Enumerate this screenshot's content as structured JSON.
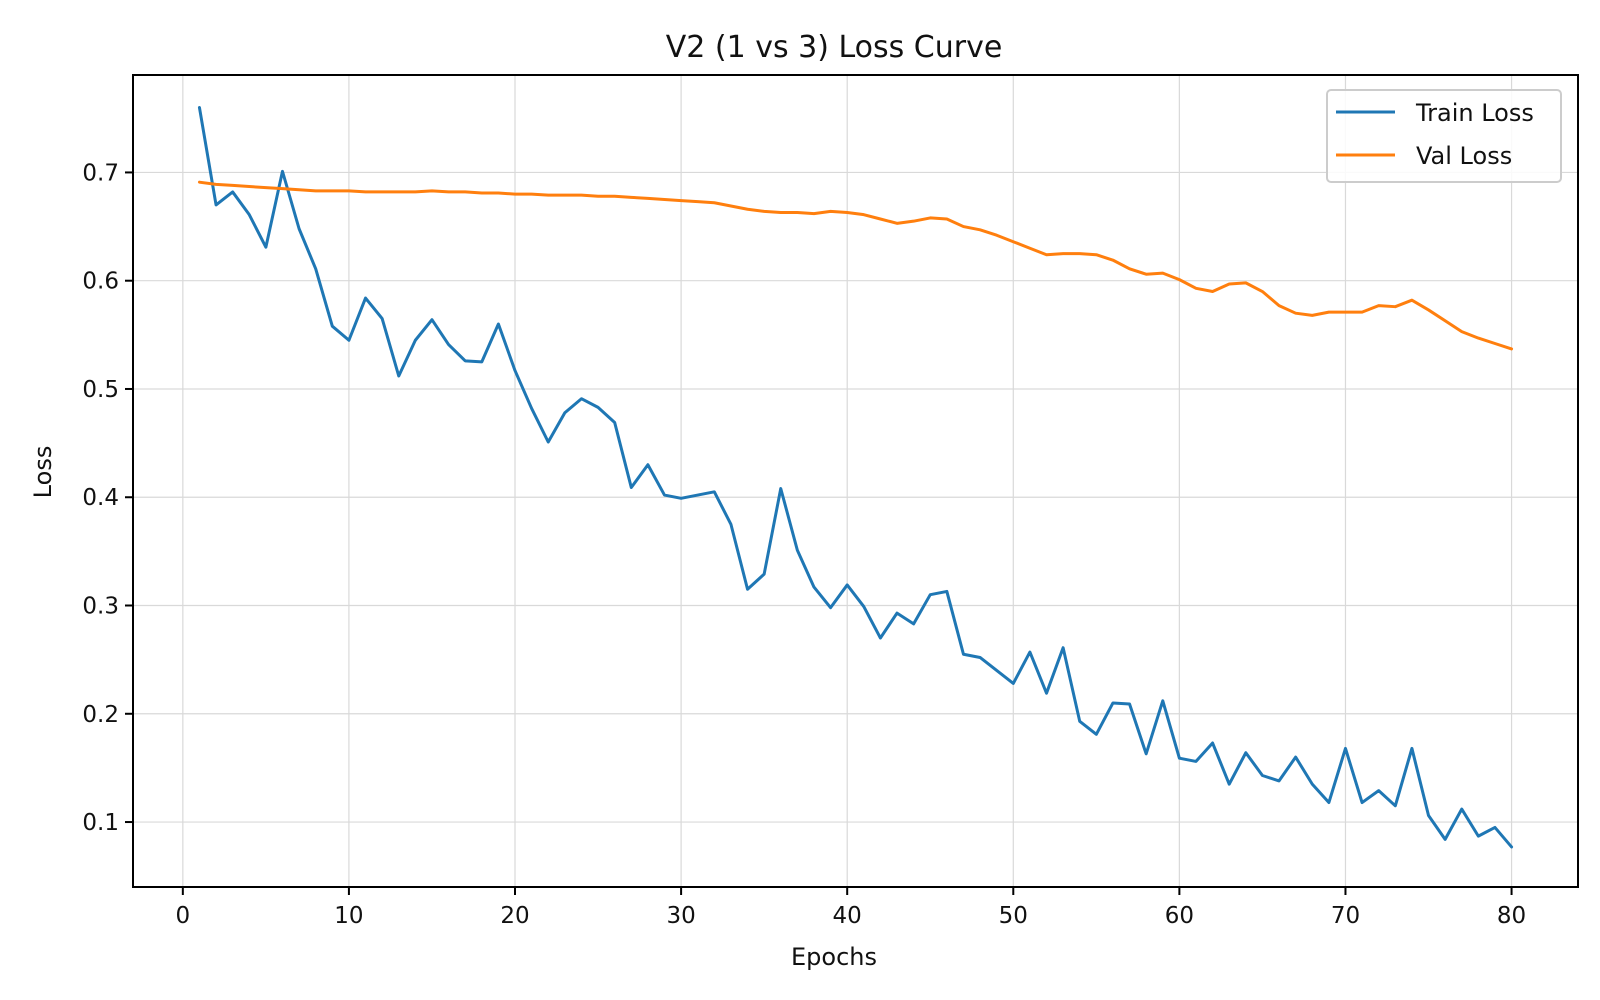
{
  "chart_data": {
    "type": "line",
    "title": "V2 (1 vs 3) Loss Curve",
    "xlabel": "Epochs",
    "ylabel": "Loss",
    "xlim": [
      -3,
      84
    ],
    "ylim": [
      0.04,
      0.79
    ],
    "xticks": [
      0,
      10,
      20,
      30,
      40,
      50,
      60,
      70,
      80
    ],
    "yticks": [
      0.1,
      0.2,
      0.3,
      0.4,
      0.5,
      0.6,
      0.7
    ],
    "grid": true,
    "legend": {
      "position": "top-right",
      "entries": [
        "Train Loss",
        "Val Loss"
      ]
    },
    "x": [
      1,
      2,
      3,
      4,
      5,
      6,
      7,
      8,
      9,
      10,
      11,
      12,
      13,
      14,
      15,
      16,
      17,
      18,
      19,
      20,
      21,
      22,
      23,
      24,
      25,
      26,
      27,
      28,
      29,
      30,
      31,
      32,
      33,
      34,
      35,
      36,
      37,
      38,
      39,
      40,
      41,
      42,
      43,
      44,
      45,
      46,
      47,
      48,
      49,
      50,
      51,
      52,
      53,
      54,
      55,
      56,
      57,
      58,
      59,
      60,
      61,
      62,
      63,
      64,
      65,
      66,
      67,
      68,
      69,
      70,
      71,
      72,
      73,
      74,
      75,
      76,
      77,
      78,
      79,
      80
    ],
    "series": [
      {
        "name": "Train Loss",
        "color": "#1f77b4",
        "values": [
          0.76,
          0.67,
          0.682,
          0.661,
          0.631,
          0.701,
          0.648,
          0.611,
          0.558,
          0.545,
          0.584,
          0.565,
          0.512,
          0.545,
          0.564,
          0.541,
          0.526,
          0.525,
          0.56,
          0.517,
          0.482,
          0.451,
          0.478,
          0.491,
          0.483,
          0.469,
          0.409,
          0.43,
          0.402,
          0.399,
          0.402,
          0.405,
          0.375,
          0.315,
          0.329,
          0.408,
          0.351,
          0.317,
          0.298,
          0.319,
          0.299,
          0.27,
          0.293,
          0.283,
          0.31,
          0.313,
          0.255,
          0.252,
          0.24,
          0.228,
          0.257,
          0.219,
          0.261,
          0.193,
          0.181,
          0.21,
          0.209,
          0.163,
          0.212,
          0.159,
          0.156,
          0.173,
          0.135,
          0.164,
          0.143,
          0.138,
          0.16,
          0.135,
          0.118,
          0.168,
          0.118,
          0.129,
          0.115,
          0.168,
          0.106,
          0.084,
          0.112,
          0.087,
          0.095,
          0.077
        ]
      },
      {
        "name": "Val Loss",
        "color": "#ff7f0e",
        "values": [
          0.691,
          0.689,
          0.688,
          0.687,
          0.686,
          0.685,
          0.684,
          0.683,
          0.683,
          0.683,
          0.682,
          0.682,
          0.682,
          0.682,
          0.683,
          0.682,
          0.682,
          0.681,
          0.681,
          0.68,
          0.68,
          0.679,
          0.679,
          0.679,
          0.678,
          0.678,
          0.677,
          0.676,
          0.675,
          0.674,
          0.673,
          0.672,
          0.669,
          0.666,
          0.664,
          0.663,
          0.663,
          0.662,
          0.664,
          0.663,
          0.661,
          0.657,
          0.653,
          0.655,
          0.658,
          0.657,
          0.65,
          0.647,
          0.642,
          0.636,
          0.63,
          0.624,
          0.625,
          0.625,
          0.624,
          0.619,
          0.611,
          0.606,
          0.607,
          0.601,
          0.593,
          0.59,
          0.597,
          0.598,
          0.59,
          0.577,
          0.57,
          0.568,
          0.571,
          0.571,
          0.571,
          0.577,
          0.576,
          0.582,
          0.573,
          0.563,
          0.553,
          0.547,
          0.542,
          0.537
        ]
      }
    ]
  }
}
